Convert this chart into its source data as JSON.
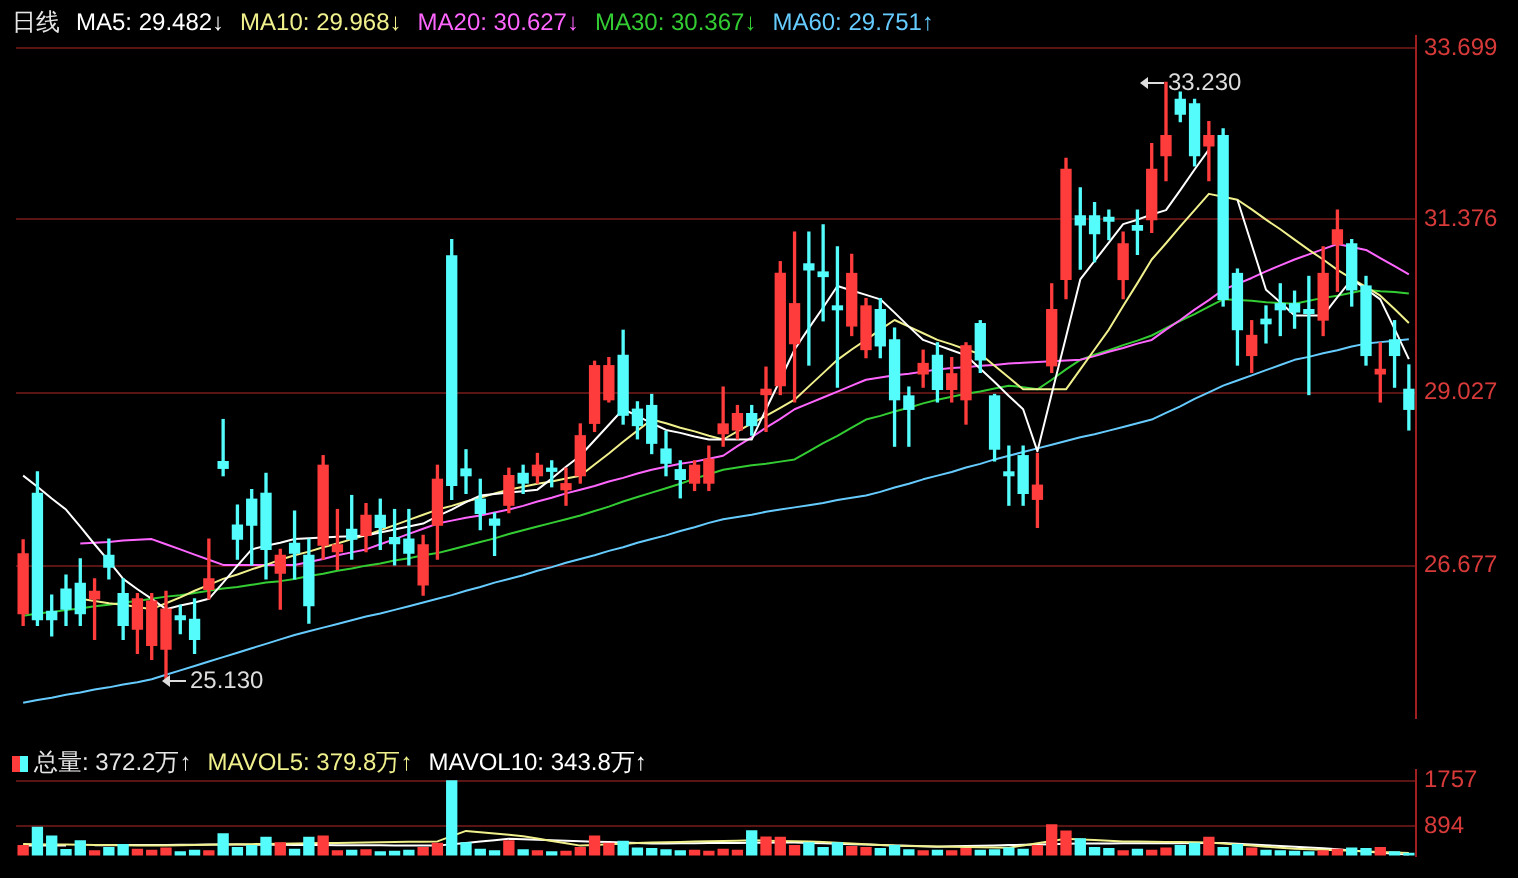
{
  "chart_data": [
    {
      "type": "candlestick",
      "title": "日线",
      "grid": "y",
      "tick_labels": "y",
      "marker": "none",
      "categories": [
        null,
        null,
        null,
        null,
        null,
        null,
        null,
        null,
        null,
        null,
        null,
        null,
        null,
        null,
        null,
        null,
        null,
        null,
        null,
        null,
        null,
        null,
        null,
        null,
        null,
        null,
        null,
        null,
        null,
        null,
        null,
        null,
        null,
        null,
        null,
        null,
        null,
        null,
        null,
        null,
        null,
        null,
        null,
        null,
        null,
        null,
        null,
        null,
        null,
        null,
        null,
        null,
        null,
        null,
        null,
        null,
        null,
        null,
        null,
        null,
        null,
        null,
        null,
        null,
        null,
        null,
        null,
        null,
        null,
        null,
        null,
        null,
        null,
        null,
        null,
        null,
        null,
        null,
        null,
        null,
        null,
        null,
        null,
        null,
        null,
        null,
        null,
        null,
        null,
        null,
        null,
        null,
        null,
        null,
        null,
        null,
        null,
        null
      ],
      "ylim": [
        24.62,
        33.86
      ],
      "yticks": [
        26.677,
        29.027,
        31.376,
        33.699
      ],
      "annotations": [
        "33.230",
        "25.130"
      ],
      "series": [
        {
          "ohlc": [
            [
              26.03,
              27.03,
              25.87,
              26.84
            ],
            [
              27.66,
              27.95,
              25.87,
              25.95
            ],
            [
              26.06,
              26.28,
              25.73,
              25.95
            ],
            [
              26.36,
              26.55,
              25.87,
              26.09
            ],
            [
              26.44,
              26.77,
              25.87,
              26.03
            ],
            [
              26.23,
              26.5,
              25.68,
              26.33
            ],
            [
              26.82,
              27.04,
              26.5,
              26.66
            ],
            [
              26.3,
              26.5,
              25.68,
              25.87
            ],
            [
              25.82,
              26.3,
              25.49,
              26.23
            ],
            [
              25.6,
              26.3,
              25.41,
              26.2
            ],
            [
              25.55,
              26.33,
              25.13,
              26.09
            ],
            [
              26.0,
              26.14,
              25.76,
              25.95
            ],
            [
              25.95,
              26.23,
              25.49,
              25.68
            ],
            [
              26.36,
              27.04,
              26.23,
              26.5
            ],
            [
              28.09,
              28.66,
              27.9,
              28.0
            ],
            [
              27.23,
              27.5,
              26.77,
              27.04
            ],
            [
              27.58,
              27.71,
              26.69,
              27.23
            ],
            [
              27.66,
              27.93,
              26.5,
              26.9
            ],
            [
              26.58,
              26.9,
              26.09,
              26.82
            ],
            [
              26.98,
              27.42,
              26.5,
              26.85
            ],
            [
              26.82,
              27.04,
              25.9,
              26.14
            ],
            [
              26.96,
              28.17,
              26.77,
              28.04
            ],
            [
              26.87,
              27.44,
              26.63,
              26.96
            ],
            [
              27.17,
              27.63,
              26.77,
              27.04
            ],
            [
              27.09,
              27.52,
              26.87,
              27.36
            ],
            [
              27.36,
              27.58,
              26.9,
              27.2
            ],
            [
              27.06,
              27.44,
              26.69,
              26.98
            ],
            [
              27.04,
              27.44,
              26.69,
              26.85
            ],
            [
              26.42,
              27.09,
              26.28,
              26.96
            ],
            [
              27.23,
              28.04,
              26.77,
              27.85
            ],
            [
              30.88,
              31.1,
              27.58,
              27.77
            ],
            [
              27.99,
              28.25,
              27.66,
              27.9
            ],
            [
              27.58,
              27.85,
              27.17,
              27.39
            ],
            [
              27.31,
              27.39,
              26.82,
              27.23
            ],
            [
              27.5,
              28.0,
              27.4,
              27.9
            ],
            [
              27.93,
              28.04,
              27.66,
              27.8
            ],
            [
              27.9,
              28.2,
              27.8,
              28.04
            ],
            [
              28.0,
              28.1,
              27.75,
              27.96
            ],
            [
              27.71,
              28.0,
              27.5,
              27.79
            ],
            [
              27.9,
              28.6,
              27.8,
              28.44
            ],
            [
              28.61,
              29.45,
              28.5,
              29.39
            ],
            [
              28.93,
              29.5,
              28.9,
              29.39
            ],
            [
              29.53,
              29.87,
              28.6,
              28.72
            ],
            [
              28.8,
              28.9,
              28.4,
              28.58
            ],
            [
              28.85,
              29.0,
              28.2,
              28.34
            ],
            [
              28.26,
              28.5,
              27.9,
              28.07
            ],
            [
              27.98,
              28.1,
              27.6,
              27.85
            ],
            [
              27.8,
              28.1,
              27.7,
              28.04
            ],
            [
              27.8,
              28.3,
              27.7,
              28.12
            ],
            [
              28.47,
              29.1,
              28.3,
              28.6
            ],
            [
              28.52,
              28.85,
              28.4,
              28.74
            ],
            [
              28.74,
              28.85,
              28.45,
              28.58
            ],
            [
              29.0,
              29.37,
              28.5,
              29.07
            ],
            [
              29.12,
              30.8,
              29.0,
              30.64
            ],
            [
              29.69,
              31.2,
              28.9,
              30.23
            ],
            [
              30.77,
              31.2,
              29.4,
              30.69
            ],
            [
              30.66,
              31.3,
              30.0,
              30.6
            ],
            [
              30.2,
              31.0,
              29.1,
              30.15
            ],
            [
              29.93,
              30.9,
              29.8,
              30.64
            ],
            [
              29.61,
              30.3,
              29.5,
              30.2
            ],
            [
              30.15,
              30.3,
              29.5,
              29.66
            ],
            [
              29.74,
              29.9,
              28.3,
              28.93
            ],
            [
              28.98,
              29.1,
              28.3,
              28.8
            ],
            [
              29.28,
              29.6,
              29.1,
              29.42
            ],
            [
              29.53,
              29.7,
              28.9,
              29.07
            ],
            [
              29.07,
              29.5,
              28.9,
              29.28
            ],
            [
              28.93,
              29.7,
              28.6,
              29.66
            ],
            [
              29.96,
              30.0,
              29.3,
              29.47
            ],
            [
              28.98,
              29.0,
              28.1,
              28.26
            ],
            [
              27.95,
              28.3,
              27.5,
              27.9
            ],
            [
              28.17,
              28.3,
              27.5,
              27.66
            ],
            [
              27.58,
              28.2,
              27.2,
              27.77
            ],
            [
              29.39,
              30.5,
              29.3,
              30.15
            ],
            [
              30.56,
              32.2,
              30.3,
              32.05
            ],
            [
              31.42,
              31.8,
              30.7,
              31.3
            ],
            [
              31.42,
              31.6,
              30.8,
              31.18
            ],
            [
              31.4,
              31.5,
              31.1,
              31.35
            ],
            [
              30.56,
              31.2,
              30.3,
              31.04
            ],
            [
              31.29,
              31.5,
              30.9,
              31.23
            ],
            [
              31.37,
              32.4,
              31.2,
              32.05
            ],
            [
              32.24,
              33.23,
              31.9,
              32.51
            ],
            [
              33.0,
              33.1,
              32.7,
              32.8
            ],
            [
              32.94,
              33.0,
              32.1,
              32.24
            ],
            [
              32.37,
              32.7,
              31.9,
              32.51
            ],
            [
              32.51,
              32.6,
              30.2,
              30.29
            ],
            [
              30.64,
              30.7,
              29.4,
              29.88
            ],
            [
              29.53,
              30.0,
              29.3,
              29.8
            ],
            [
              30.02,
              30.2,
              29.7,
              29.96
            ],
            [
              30.23,
              30.5,
              29.8,
              30.15
            ],
            [
              30.23,
              30.4,
              29.9,
              30.12
            ],
            [
              30.15,
              30.6,
              29.0,
              30.1
            ],
            [
              30.01,
              31.0,
              29.8,
              30.64
            ],
            [
              31.04,
              31.5,
              30.4,
              31.23
            ],
            [
              31.04,
              31.1,
              30.2,
              30.42
            ],
            [
              30.47,
              30.6,
              29.4,
              29.53
            ],
            [
              29.28,
              29.7,
              28.9,
              29.34
            ],
            [
              29.74,
              30.0,
              29.1,
              29.53
            ],
            [
              29.07,
              29.4,
              28.52,
              28.8
            ]
          ],
          "colors": [
            "#ff3c3c",
            "#54fcfc",
            "#54fcfc",
            "#54fcfc",
            "#54fcfc",
            "#ff3c3c",
            "#54fcfc",
            "#54fcfc",
            "#ff3c3c",
            "#ff3c3c",
            "#ff3c3c",
            "#54fcfc",
            "#54fcfc",
            "#ff3c3c",
            "#54fcfc",
            "#54fcfc",
            "#54fcfc",
            "#54fcfc",
            "#ff3c3c",
            "#54fcfc",
            "#54fcfc",
            "#ff3c3c",
            "#ff3c3c",
            "#54fcfc",
            "#ff3c3c",
            "#54fcfc",
            "#54fcfc",
            "#54fcfc",
            "#ff3c3c",
            "#ff3c3c",
            "#54fcfc",
            "#54fcfc",
            "#54fcfc",
            "#54fcfc",
            "#ff3c3c",
            "#54fcfc",
            "#ff3c3c",
            "#54fcfc",
            "#ff3c3c",
            "#ff3c3c",
            "#ff3c3c",
            "#ff3c3c",
            "#54fcfc",
            "#54fcfc",
            "#54fcfc",
            "#54fcfc",
            "#54fcfc",
            "#ff3c3c",
            "#ff3c3c",
            "#ff3c3c",
            "#ff3c3c",
            "#54fcfc",
            "#ff3c3c",
            "#ff3c3c",
            "#ff3c3c",
            "#54fcfc",
            "#54fcfc",
            "#54fcfc",
            "#ff3c3c",
            "#ff3c3c",
            "#54fcfc",
            "#54fcfc",
            "#54fcfc",
            "#ff3c3c",
            "#54fcfc",
            "#ff3c3c",
            "#ff3c3c",
            "#54fcfc",
            "#54fcfc",
            "#54fcfc",
            "#54fcfc",
            "#ff3c3c",
            "#ff3c3c",
            "#ff3c3c",
            "#54fcfc",
            "#54fcfc",
            "#54fcfc",
            "#ff3c3c",
            "#54fcfc",
            "#ff3c3c",
            "#ff3c3c",
            "#54fcfc",
            "#54fcfc",
            "#ff3c3c",
            "#54fcfc",
            "#54fcfc",
            "#ff3c3c",
            "#54fcfc",
            "#54fcfc",
            "#54fcfc",
            "#54fcfc",
            "#ff3c3c",
            "#ff3c3c",
            "#54fcfc",
            "#54fcfc",
            "#ff3c3c",
            "#54fcfc",
            "#54fcfc"
          ]
        },
        {
          "type": "line",
          "name": "MA5: 29.482↓",
          "color": "#ffffff",
          "values": [
            27.9,
            27.75,
            27.59,
            27.44,
            27.21,
            26.97,
            26.74,
            26.5,
            26.36,
            26.23,
            26.09,
            26.14,
            26.18,
            26.23,
            26.45,
            26.68,
            26.9,
            26.95,
            26.99,
            27.04,
            27.05,
            27.06,
            27.07,
            27.08,
            27.09,
            27.13,
            27.17,
            27.21,
            27.25,
            27.35,
            27.44,
            27.54,
            27.63,
            27.65,
            27.67,
            27.69,
            27.71,
            27.86,
            28.02,
            28.17,
            28.38,
            28.59,
            28.8,
            28.71,
            28.61,
            28.52,
            28.48,
            28.43,
            28.39,
            28.39,
            28.39,
            28.39,
            28.8,
            29.2,
            29.61,
            29.9,
            30.18,
            30.47,
            30.41,
            30.35,
            30.29,
            30.11,
            29.92,
            29.74,
            29.67,
            29.6,
            29.53,
            29.35,
            29.17,
            28.98,
            28.8,
            28.23,
            29.01,
            29.78,
            30.56,
            30.81,
            31.06,
            31.31,
            31.37,
            31.44,
            31.5,
            31.77,
            32.05,
            32.32,
            null,
            31.64,
            31.03,
            30.42,
            30.25,
            30.07,
            30.07,
            30.07,
            30.32,
            30.56,
            30.43,
            30.29,
            29.89,
            29.48
          ]
        },
        {
          "type": "line",
          "name": "MA10: 29.968↓",
          "color": "#f0f08c",
          "values": [
            null,
            null,
            null,
            null,
            26.23,
            26.2,
            26.17,
            26.15,
            26.12,
            26.09,
            26.17,
            26.25,
            26.34,
            26.42,
            26.5,
            26.56,
            26.63,
            26.69,
            26.76,
            26.82,
            26.87,
            26.93,
            26.98,
            27.04,
            27.09,
            27.16,
            27.23,
            27.3,
            27.37,
            27.44,
            27.49,
            27.55,
            27.6,
            27.66,
            27.71,
            27.75,
            27.79,
            27.82,
            27.86,
            27.9,
            28.05,
            28.2,
            28.36,
            28.51,
            28.66,
            28.61,
            28.55,
            28.5,
            28.44,
            28.39,
            28.5,
            28.61,
            28.71,
            28.82,
            28.93,
            29.11,
            29.29,
            29.47,
            29.61,
            29.74,
            29.88,
            30.01,
            29.92,
            29.83,
            29.74,
            29.68,
            29.61,
            29.55,
            29.39,
            29.23,
            29.07,
            29.07,
            29.07,
            29.07,
            29.34,
            29.61,
            29.88,
            30.2,
            30.51,
            30.83,
            31.05,
            31.28,
            31.5,
            31.72,
            31.68,
            31.64,
            31.51,
            31.37,
            31.24,
            31.1,
            30.96,
            30.83,
            30.69,
            30.57,
            30.46,
            30.34,
            30.16,
            29.97
          ]
        },
        {
          "type": "line",
          "name": "MA20: 30.627↓",
          "color": "#ff66ff",
          "values": [
            null,
            null,
            null,
            null,
            26.98,
            26.99,
            27.0,
            27.02,
            27.03,
            27.04,
            26.97,
            26.9,
            26.83,
            26.76,
            26.69,
            26.69,
            26.69,
            26.69,
            26.69,
            26.69,
            26.73,
            26.77,
            26.82,
            26.86,
            26.9,
            26.97,
            27.04,
            27.11,
            27.18,
            27.25,
            27.29,
            27.33,
            27.36,
            27.4,
            27.44,
            27.49,
            27.55,
            27.6,
            27.66,
            27.71,
            27.76,
            27.82,
            27.87,
            27.93,
            27.98,
            28.02,
            28.06,
            28.09,
            28.13,
            28.17,
            28.3,
            28.42,
            28.55,
            28.67,
            28.8,
            28.88,
            28.96,
            29.04,
            29.12,
            29.2,
            29.23,
            29.26,
            29.28,
            29.31,
            29.34,
            29.36,
            29.37,
            29.39,
            29.4,
            29.42,
            29.43,
            29.44,
            29.45,
            29.46,
            29.47,
            29.52,
            29.58,
            29.63,
            29.69,
            29.74,
            29.88,
            30.01,
            30.15,
            30.28,
            30.42,
            30.5,
            30.58,
            30.67,
            30.75,
            30.83,
            30.9,
            30.97,
            31.04,
            31.0,
            30.96,
            30.85,
            30.74,
            30.63
          ]
        },
        {
          "type": "line",
          "name": "MA30: 30.367↓",
          "color": "#33cc33",
          "values": [
            26.0,
            26.03,
            26.05,
            26.08,
            26.1,
            26.13,
            26.15,
            26.18,
            26.2,
            26.23,
            26.26,
            26.28,
            26.31,
            26.34,
            26.37,
            26.39,
            26.42,
            26.45,
            26.47,
            26.5,
            26.54,
            26.57,
            26.61,
            26.64,
            26.68,
            26.71,
            26.75,
            26.78,
            26.82,
            26.85,
            26.9,
            26.95,
            27.0,
            27.05,
            27.11,
            27.16,
            27.21,
            27.26,
            27.31,
            27.36,
            27.42,
            27.48,
            27.55,
            27.61,
            27.67,
            27.73,
            27.79,
            27.86,
            27.92,
            27.98,
            28.01,
            28.04,
            28.06,
            28.09,
            28.12,
            28.23,
            28.34,
            28.44,
            28.55,
            28.66,
            28.71,
            28.77,
            28.82,
            28.88,
            28.93,
            28.97,
            29.01,
            29.04,
            29.08,
            29.12,
            29.1,
            29.07,
            29.2,
            29.34,
            29.47,
            29.54,
            29.6,
            29.67,
            29.73,
            29.8,
            29.9,
            30.0,
            30.09,
            30.19,
            30.29,
            30.28,
            30.27,
            30.25,
            30.24,
            30.23,
            30.27,
            30.31,
            30.34,
            30.38,
            30.42,
            30.4,
            30.39,
            30.37
          ]
        },
        {
          "type": "line",
          "name": "MA60: 29.751↑",
          "color": "#66ccff",
          "values": [
            24.82,
            24.86,
            24.89,
            24.93,
            24.96,
            25.0,
            25.03,
            25.07,
            25.1,
            25.14,
            25.2,
            25.26,
            25.32,
            25.38,
            25.44,
            25.5,
            25.56,
            25.62,
            25.68,
            25.74,
            25.79,
            25.84,
            25.89,
            25.94,
            25.99,
            26.03,
            26.08,
            26.13,
            26.18,
            26.23,
            26.28,
            26.34,
            26.39,
            26.45,
            26.5,
            26.55,
            26.61,
            26.66,
            26.72,
            26.77,
            26.82,
            26.88,
            26.93,
            26.99,
            27.04,
            27.09,
            27.15,
            27.2,
            27.26,
            27.31,
            27.34,
            27.37,
            27.41,
            27.44,
            27.47,
            27.5,
            27.53,
            27.57,
            27.6,
            27.63,
            27.68,
            27.74,
            27.79,
            27.85,
            27.9,
            27.95,
            28.01,
            28.06,
            28.12,
            28.17,
            28.22,
            28.27,
            28.32,
            28.37,
            28.42,
            28.46,
            28.51,
            28.56,
            28.61,
            28.66,
            28.75,
            28.84,
            28.94,
            29.03,
            29.12,
            29.19,
            29.26,
            29.33,
            29.4,
            29.47,
            29.51,
            29.56,
            29.6,
            29.65,
            29.69,
            29.71,
            29.73,
            29.75
          ]
        }
      ]
    },
    {
      "type": "bar",
      "grid": "y",
      "tick_labels": "y",
      "marker": "none",
      "categories": [
        null,
        null,
        null,
        null,
        null,
        null,
        null,
        null,
        null,
        null,
        null,
        null,
        null,
        null,
        null,
        null,
        null,
        null,
        null,
        null,
        null,
        null,
        null,
        null,
        null,
        null,
        null,
        null,
        null,
        null,
        null,
        null,
        null,
        null,
        null,
        null,
        null,
        null,
        null,
        null,
        null,
        null,
        null,
        null,
        null,
        null,
        null,
        null,
        null,
        null,
        null,
        null,
        null,
        null,
        null,
        null,
        null,
        null,
        null,
        null,
        null,
        null,
        null,
        null,
        null,
        null,
        null,
        null,
        null,
        null,
        null,
        null,
        null,
        null,
        null,
        null,
        null,
        null,
        null,
        null,
        null,
        null,
        null,
        null,
        null,
        null,
        null,
        null,
        null,
        null,
        null,
        null,
        null,
        null,
        null,
        null,
        null,
        null
      ],
      "ylim": [
        330,
        1960
      ],
      "yticks": [
        894,
        1757
      ],
      "series": [
        {
          "name": "总量: 372.2万↑",
          "values": [
            520,
            865,
            700,
            445,
            610,
            420,
            480,
            540,
            450,
            430,
            470,
            400,
            430,
            420,
            745,
            480,
            520,
            675,
            570,
            450,
            675,
            700,
            420,
            430,
            440,
            400,
            410,
            430,
            480,
            560,
            1750,
            570,
            450,
            420,
            610,
            440,
            420,
            400,
            410,
            480,
            700,
            560,
            600,
            470,
            460,
            440,
            420,
            430,
            410,
            450,
            430,
            800,
            680,
            675,
            520,
            570,
            480,
            570,
            500,
            480,
            460,
            520,
            440,
            420,
            430,
            420,
            460,
            430,
            440,
            470,
            450,
            520,
            915,
            795,
            650,
            480,
            460,
            420,
            450,
            430,
            470,
            520,
            560,
            675,
            480,
            540,
            470,
            430,
            420,
            410,
            400,
            420,
            450,
            470,
            460,
            480,
            400,
            372.2
          ],
          "colors": [
            "#ff3c3c",
            "#54fcfc",
            "#54fcfc",
            "#54fcfc",
            "#54fcfc",
            "#ff3c3c",
            "#54fcfc",
            "#54fcfc",
            "#ff3c3c",
            "#ff3c3c",
            "#ff3c3c",
            "#54fcfc",
            "#54fcfc",
            "#ff3c3c",
            "#54fcfc",
            "#54fcfc",
            "#54fcfc",
            "#54fcfc",
            "#ff3c3c",
            "#54fcfc",
            "#54fcfc",
            "#ff3c3c",
            "#ff3c3c",
            "#54fcfc",
            "#ff3c3c",
            "#54fcfc",
            "#54fcfc",
            "#54fcfc",
            "#ff3c3c",
            "#ff3c3c",
            "#54fcfc",
            "#54fcfc",
            "#54fcfc",
            "#54fcfc",
            "#ff3c3c",
            "#54fcfc",
            "#ff3c3c",
            "#54fcfc",
            "#ff3c3c",
            "#ff3c3c",
            "#ff3c3c",
            "#ff3c3c",
            "#54fcfc",
            "#54fcfc",
            "#54fcfc",
            "#54fcfc",
            "#54fcfc",
            "#ff3c3c",
            "#ff3c3c",
            "#ff3c3c",
            "#ff3c3c",
            "#54fcfc",
            "#ff3c3c",
            "#ff3c3c",
            "#ff3c3c",
            "#54fcfc",
            "#54fcfc",
            "#54fcfc",
            "#ff3c3c",
            "#ff3c3c",
            "#54fcfc",
            "#54fcfc",
            "#54fcfc",
            "#ff3c3c",
            "#54fcfc",
            "#ff3c3c",
            "#ff3c3c",
            "#54fcfc",
            "#54fcfc",
            "#54fcfc",
            "#54fcfc",
            "#ff3c3c",
            "#ff3c3c",
            "#ff3c3c",
            "#54fcfc",
            "#54fcfc",
            "#54fcfc",
            "#ff3c3c",
            "#54fcfc",
            "#ff3c3c",
            "#ff3c3c",
            "#54fcfc",
            "#54fcfc",
            "#ff3c3c",
            "#54fcfc",
            "#54fcfc",
            "#ff3c3c",
            "#54fcfc",
            "#54fcfc",
            "#54fcfc",
            "#54fcfc",
            "#ff3c3c",
            "#ff3c3c",
            "#54fcfc",
            "#54fcfc",
            "#ff3c3c",
            "#54fcfc",
            "#54fcfc"
          ]
        },
        {
          "type": "line",
          "name": "MAVOL5: 379.8万↑",
          "color": "#f0f08c",
          "values": [
            550,
            547,
            543,
            540,
            537,
            533,
            530,
            527,
            523,
            520,
            524,
            528,
            532,
            536,
            540,
            544,
            548,
            552,
            556,
            560,
            564,
            568,
            572,
            576,
            580,
            584,
            588,
            592,
            596,
            600,
            700,
            800,
            775,
            750,
            725,
            700,
            655,
            610,
            565,
            520,
            532,
            544,
            556,
            568,
            580,
            586,
            591,
            597,
            603,
            609,
            614,
            620,
            615,
            610,
            605,
            600,
            587,
            573,
            560,
            547,
            533,
            520,
            515,
            510,
            505,
            500,
            495,
            490,
            485,
            480,
            523,
            565,
            608,
            650,
            638,
            625,
            613,
            600,
            597,
            593,
            590,
            587,
            583,
            580,
            560,
            540,
            520,
            500,
            480,
            460,
            450,
            440,
            430,
            420,
            410,
            400,
            390,
            379.8
          ]
        },
        {
          "type": "line",
          "name": "MAVOL10: 343.8万↑",
          "color": "#ffffff",
          "values": [
            520,
            521,
            523,
            524,
            null,
            527,
            529,
            530,
            531,
            533,
            534,
            536,
            537,
            539,
            540,
            539,
            537,
            536,
            535,
            533,
            532,
            531,
            529,
            528,
            527,
            525,
            524,
            523,
            521,
            520,
            546,
            572,
            598,
            624,
            650,
            641,
            632,
            623,
            614,
            605,
            596,
            587,
            578,
            569,
            560,
            562,
            564,
            566,
            568,
            570,
            572,
            574,
            576,
            578,
            580,
            572,
            564,
            556,
            548,
            540,
            532,
            524,
            516,
            508,
            500,
            506,
            512,
            518,
            524,
            530,
            536,
            542,
            548,
            554,
            560,
            561,
            562,
            563,
            564,
            565,
            566,
            567,
            568,
            569,
            570,
            556,
            541,
            527,
            513,
            499,
            484,
            470,
            449,
            428,
            407,
            386,
            365,
            343.8
          ]
        }
      ]
    }
  ]
}
